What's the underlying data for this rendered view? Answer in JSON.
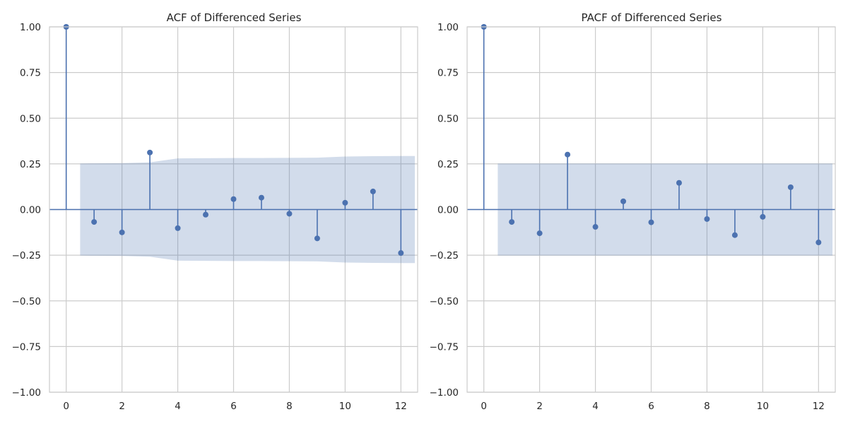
{
  "colors": {
    "series": "#4c72b0",
    "band": "#4c72b0",
    "grid": "#cccccc"
  },
  "chart_data": [
    {
      "type": "stem",
      "title": "ACF of Differenced Series",
      "xlabel": "",
      "ylabel": "",
      "xlim": [
        -0.6,
        12.6
      ],
      "ylim": [
        -1.0,
        1.0
      ],
      "xticks": [
        0,
        2,
        4,
        6,
        8,
        10,
        12
      ],
      "yticks": [
        1.0,
        0.75,
        0.5,
        0.25,
        0.0,
        -0.25,
        -0.5,
        -0.75,
        -1.0
      ],
      "ytick_labels": [
        "1.00",
        "0.75",
        "0.50",
        "0.25",
        "0.00",
        "−0.25",
        "−0.50",
        "−0.75",
        "−1.00"
      ],
      "grid": true,
      "lags": [
        0,
        1,
        2,
        3,
        4,
        5,
        6,
        7,
        8,
        9,
        10,
        11,
        12
      ],
      "values": [
        1.0,
        -0.068,
        -0.125,
        0.312,
        -0.102,
        -0.028,
        0.057,
        0.065,
        -0.023,
        -0.158,
        0.037,
        0.099,
        -0.238
      ],
      "confidence_band": {
        "x": [
          0.5,
          1,
          2,
          3,
          4,
          5,
          6,
          7,
          8,
          9,
          10,
          11,
          12,
          12.5
        ],
        "upper": [
          0.252,
          0.253,
          0.254,
          0.258,
          0.28,
          0.281,
          0.282,
          0.282,
          0.283,
          0.284,
          0.29,
          0.292,
          0.293,
          0.293
        ]
      }
    },
    {
      "type": "stem",
      "title": "PACF of Differenced Series",
      "xlabel": "",
      "ylabel": "",
      "xlim": [
        -0.6,
        12.6
      ],
      "ylim": [
        -1.0,
        1.0
      ],
      "xticks": [
        0,
        2,
        4,
        6,
        8,
        10,
        12
      ],
      "yticks": [
        1.0,
        0.75,
        0.5,
        0.25,
        0.0,
        -0.25,
        -0.5,
        -0.75,
        -1.0
      ],
      "ytick_labels": [
        "1.00",
        "0.75",
        "0.50",
        "0.25",
        "0.00",
        "−0.25",
        "−0.50",
        "−0.75",
        "−1.00"
      ],
      "grid": true,
      "lags": [
        0,
        1,
        2,
        3,
        4,
        5,
        6,
        7,
        8,
        9,
        10,
        11,
        12
      ],
      "values": [
        1.0,
        -0.068,
        -0.13,
        0.301,
        -0.095,
        0.045,
        -0.07,
        0.146,
        -0.052,
        -0.14,
        -0.04,
        0.122,
        -0.18
      ],
      "confidence_band": {
        "x": [
          0.5,
          12.5
        ],
        "upper": [
          0.252,
          0.252
        ]
      }
    }
  ]
}
